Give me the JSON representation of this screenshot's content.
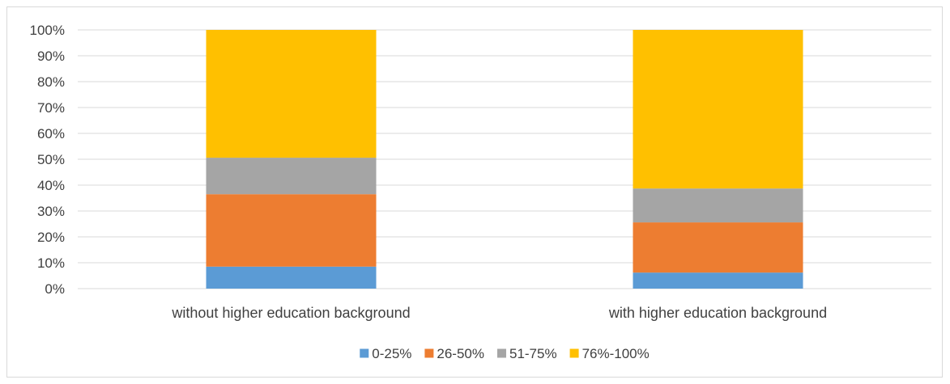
{
  "chart_data": {
    "type": "bar",
    "stacked": true,
    "percent_stacked": true,
    "categories": [
      "without higher education background",
      "with higher education background"
    ],
    "series": [
      {
        "name": "0-25%",
        "color": "#5b9bd5",
        "values": [
          8.5,
          6.2
        ]
      },
      {
        "name": "26-50%",
        "color": "#ed7d31",
        "values": [
          28.0,
          19.4
        ]
      },
      {
        "name": "51-75%",
        "color": "#a5a5a5",
        "values": [
          14.1,
          13.1
        ]
      },
      {
        "name": "76%-100%",
        "color": "#ffc000",
        "values": [
          49.4,
          61.3
        ]
      }
    ],
    "ylim": [
      0,
      100
    ],
    "yticks": [
      "0%",
      "10%",
      "20%",
      "30%",
      "40%",
      "50%",
      "60%",
      "70%",
      "80%",
      "90%",
      "100%"
    ],
    "grid": true,
    "legend_position": "bottom"
  }
}
